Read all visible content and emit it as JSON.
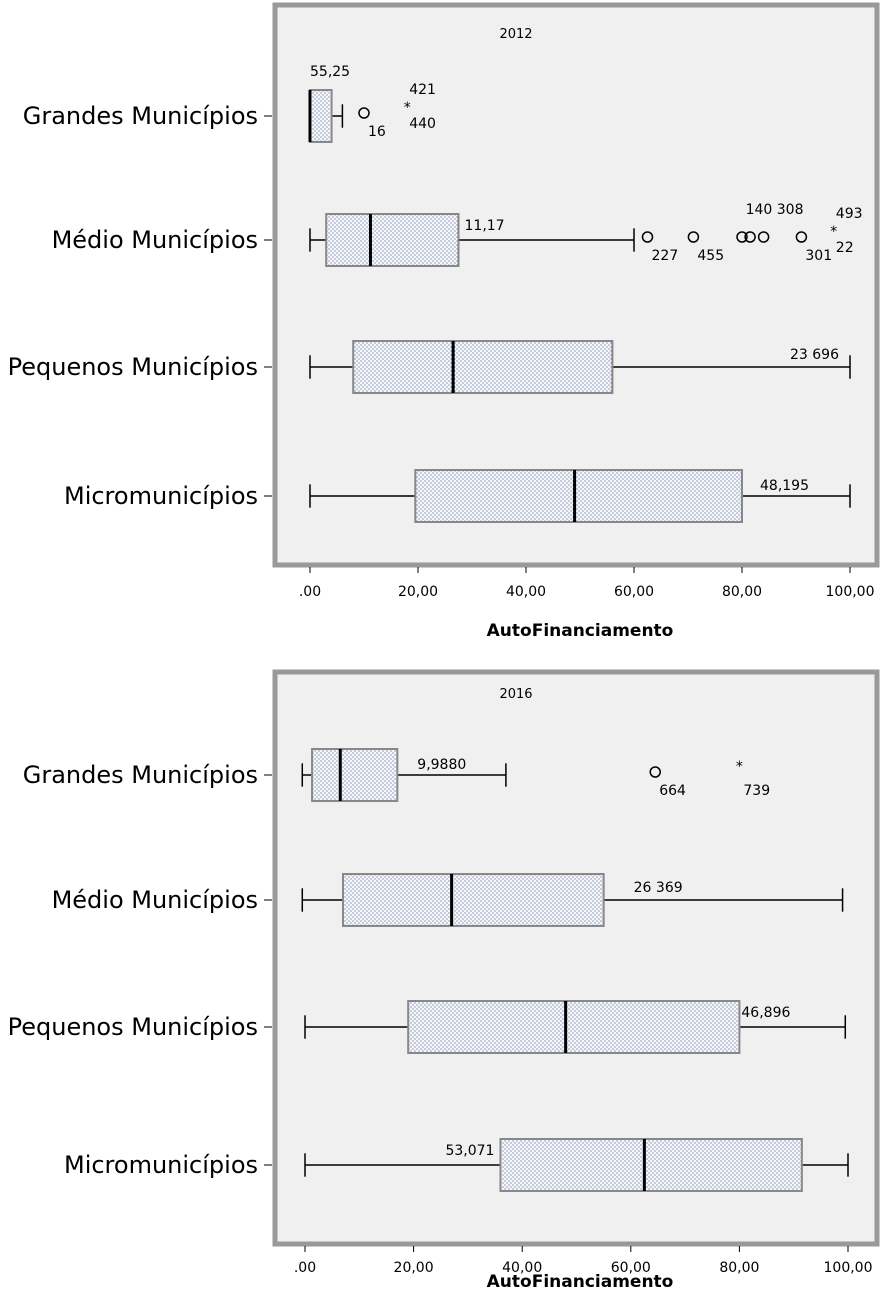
{
  "chart_data": [
    {
      "type": "boxplot",
      "title": "2012",
      "xlabel": "AutoFinanciamento",
      "xlim": [
        0,
        100
      ],
      "ticks": [
        ".00",
        "20,00",
        "40,00",
        "60,00",
        "80,00",
        "100,00"
      ],
      "categories": [
        "Grandes Municípios",
        "Médio Municípios",
        "Pequenos Municípios",
        "Micromunicípios"
      ],
      "boxes": [
        {
          "category": "Grandes Municípios",
          "min": 0,
          "q1": 0,
          "median": 0,
          "q3": 4,
          "max": 6,
          "outliers": [
            {
              "value": 10,
              "kind": "circle",
              "labels": [
                "16"
              ]
            },
            {
              "value": 18,
              "kind": "extreme",
              "labels": [
                "421",
                "440"
              ]
            }
          ],
          "annotation": "55,25"
        },
        {
          "category": "Médio Municípios",
          "min": 0,
          "q1": 3,
          "median": 11.2,
          "q3": 27.5,
          "max": 60,
          "outliers": [
            {
              "value": 62.5,
              "kind": "circle",
              "labels": [
                "227"
              ]
            },
            {
              "value": 71,
              "kind": "circle",
              "labels": [
                "455"
              ]
            },
            {
              "value": 80,
              "kind": "circle",
              "labels": []
            },
            {
              "value": 81.5,
              "kind": "circle",
              "labels": []
            },
            {
              "value": 84,
              "kind": "circle",
              "labels": [
                "140 308"
              ]
            },
            {
              "value": 91,
              "kind": "circle",
              "labels": [
                "301"
              ]
            },
            {
              "value": 97,
              "kind": "extreme",
              "labels": [
                "493",
                "22"
              ]
            }
          ],
          "annotation": "11,17"
        },
        {
          "category": "Pequenos Municípios",
          "min": 0,
          "q1": 8,
          "median": 26.5,
          "q3": 56,
          "max": 100,
          "outliers": [],
          "annotation": "23 696"
        },
        {
          "category": "Micromunicípios",
          "min": 0,
          "q1": 19.5,
          "median": 49,
          "q3": 80,
          "max": 100,
          "outliers": [],
          "annotation": "48,195"
        }
      ]
    },
    {
      "type": "boxplot",
      "title": "2016",
      "xlabel": "AutoFinanciamento",
      "xlim": [
        0,
        100
      ],
      "ticks": [
        ".00",
        "20,00",
        "40,00",
        "60,00",
        "80,00",
        "100,00"
      ],
      "categories": [
        "Grandes Municípios",
        "Médio Municípios",
        "Pequenos Municípios",
        "Micromunicípios"
      ],
      "boxes": [
        {
          "category": "Grandes Municípios",
          "min": -0.5,
          "q1": 1.3,
          "median": 6.5,
          "q3": 17,
          "max": 37,
          "outliers": [
            {
              "value": 64.5,
              "kind": "circle",
              "labels": [
                "664"
              ]
            },
            {
              "value": 80,
              "kind": "extreme",
              "labels": [
                "739"
              ]
            }
          ],
          "annotation": "9,9880"
        },
        {
          "category": "Médio Municípios",
          "min": -0.5,
          "q1": 7,
          "median": 27,
          "q3": 55,
          "max": 99,
          "outliers": [],
          "annotation": "26 369"
        },
        {
          "category": "Pequenos Municípios",
          "min": 0,
          "q1": 19,
          "median": 48,
          "q3": 80,
          "max": 99.5,
          "outliers": [],
          "annotation": "46,896"
        },
        {
          "category": "Micromunicípios",
          "min": 0,
          "q1": 36,
          "median": 62.5,
          "q3": 91.5,
          "max": 100,
          "outliers": [],
          "annotation": "53,071"
        }
      ]
    }
  ]
}
